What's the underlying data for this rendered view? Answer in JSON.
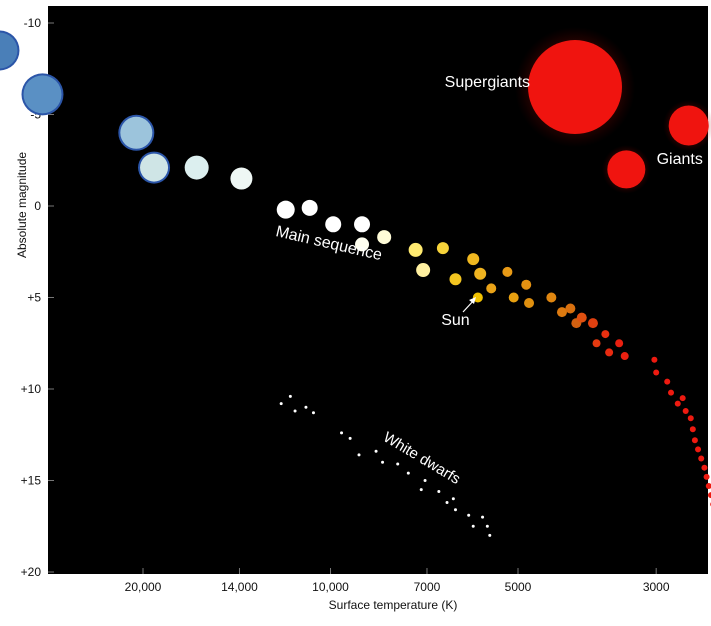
{
  "chart_data": {
    "type": "scatter",
    "title": "",
    "xlabel": "Surface temperature (K)",
    "ylabel": "Absolute magnitude",
    "x_scale": "log",
    "x_reversed": true,
    "xlim": [
      40000,
      2200
    ],
    "ylim": [
      20,
      -10
    ],
    "x_ticks": [
      {
        "value": 20000,
        "label": "20,000"
      },
      {
        "value": 14000,
        "label": "14,000"
      },
      {
        "value": 10000,
        "label": "10,000"
      },
      {
        "value": 7000,
        "label": "7000"
      },
      {
        "value": 5000,
        "label": "5000"
      },
      {
        "value": 3000,
        "label": "3000"
      }
    ],
    "y_ticks": [
      {
        "value": -10,
        "label": "-10"
      },
      {
        "value": -5,
        "label": "-5"
      },
      {
        "value": 0,
        "label": "0"
      },
      {
        "value": 5,
        "label": "+5"
      },
      {
        "value": 10,
        "label": "+10"
      },
      {
        "value": 15,
        "label": "+15"
      },
      {
        "value": 20,
        "label": "+20"
      }
    ],
    "grid": false,
    "background": "#000000",
    "annotations": [
      {
        "text": "Supergiants",
        "x": 5600,
        "y": -6.5,
        "size": 16
      },
      {
        "text": "Giants",
        "x": 2750,
        "y": -2.3,
        "size": 16
      },
      {
        "text": "Main sequence",
        "x": 10100,
        "y": 2.3,
        "size": 16,
        "rotate": 13
      },
      {
        "text": "Sun",
        "x": 6300,
        "y": 6.5,
        "size": 16
      },
      {
        "text": "White dwarfs",
        "x": 7200,
        "y": 14,
        "size": 15,
        "rotate": 31
      }
    ],
    "series": [
      {
        "group": "main_sequence",
        "points": [
          [
            34000,
            -8.5,
            18,
            "#4a7fb8"
          ],
          [
            29000,
            -6.1,
            19,
            "#5a90c4"
          ],
          [
            20500,
            -4.0,
            16,
            "#9cc4dc"
          ],
          [
            19200,
            -2.1,
            14,
            "#cfe5e6"
          ],
          [
            16400,
            -2.1,
            12,
            "#dcefef"
          ],
          [
            13900,
            -1.5,
            11,
            "#eef7f4"
          ],
          [
            11800,
            0.2,
            9,
            "#ffffff"
          ],
          [
            10800,
            0.1,
            8,
            "#ffffff"
          ],
          [
            9900,
            1.0,
            8,
            "#ffffff"
          ],
          [
            8900,
            1.0,
            8,
            "#ffffff"
          ],
          [
            8900,
            2.1,
            7,
            "#fffff0"
          ],
          [
            8200,
            1.7,
            7,
            "#fffcd8"
          ],
          [
            7100,
            3.5,
            7,
            "#fff0a0"
          ],
          [
            7300,
            2.4,
            7,
            "#ffea70"
          ],
          [
            6600,
            2.3,
            6,
            "#f7d33a"
          ],
          [
            6300,
            4.0,
            6,
            "#f3c520"
          ],
          [
            5900,
            2.9,
            6,
            "#f0b820"
          ],
          [
            5750,
            3.7,
            6,
            "#f0b420"
          ],
          [
            5520,
            4.5,
            5,
            "#eaa318"
          ],
          [
            5200,
            3.6,
            5,
            "#e89a16"
          ],
          [
            5080,
            5.0,
            5,
            "#e8a010"
          ],
          [
            4850,
            4.3,
            5,
            "#e59212"
          ],
          [
            4800,
            5.3,
            5,
            "#e0900f"
          ],
          [
            4420,
            5.0,
            5,
            "#df8610"
          ],
          [
            4250,
            5.8,
            5,
            "#dc7a10"
          ],
          [
            4120,
            5.6,
            5,
            "#d8700f"
          ],
          [
            4030,
            6.4,
            5,
            "#d26010"
          ],
          [
            3950,
            6.1,
            5,
            "#e05010"
          ],
          [
            3790,
            6.4,
            5,
            "#e04010"
          ],
          [
            3740,
            7.5,
            4,
            "#e53a10"
          ],
          [
            3620,
            7.0,
            4,
            "#e83010"
          ],
          [
            3570,
            8.0,
            4,
            "#e82a10"
          ],
          [
            3440,
            7.5,
            4,
            "#ea2010"
          ],
          [
            3370,
            8.2,
            4,
            "#ea2010"
          ],
          [
            3020,
            8.4,
            3,
            "#ee1a10"
          ],
          [
            3000,
            9.1,
            3,
            "#ee1a10"
          ],
          [
            2880,
            9.6,
            3,
            "#ee1a10"
          ],
          [
            2840,
            10.2,
            3,
            "#ee1a10"
          ],
          [
            2770,
            10.8,
            3,
            "#ee1a10"
          ],
          [
            2720,
            10.5,
            3,
            "#ee1a10"
          ],
          [
            2690,
            11.2,
            3,
            "#ee1a10"
          ],
          [
            2640,
            11.6,
            3,
            "#ee1a10"
          ],
          [
            2620,
            12.2,
            3,
            "#ee1a10"
          ],
          [
            2600,
            12.8,
            3,
            "#ee1a10"
          ],
          [
            2570,
            13.3,
            3,
            "#ee1a10"
          ],
          [
            2540,
            13.8,
            3,
            "#ee1a10"
          ],
          [
            2510,
            14.3,
            3,
            "#ee1a10"
          ],
          [
            2490,
            14.8,
            3,
            "#ee1a10"
          ],
          [
            2470,
            15.3,
            3,
            "#ee1a10"
          ],
          [
            2450,
            15.8,
            3,
            "#ee1a10"
          ],
          [
            2430,
            16.3,
            3,
            "#ee1a10"
          ],
          [
            2410,
            16.8,
            3,
            "#ee1a10"
          ],
          [
            2390,
            17.3,
            3,
            "#ee1a10"
          ],
          [
            2370,
            17.8,
            3,
            "#ee1a10"
          ],
          [
            2350,
            18.3,
            3,
            "#ee1a10"
          ],
          [
            2330,
            18.8,
            3,
            "#ee1a10"
          ],
          [
            2310,
            19.3,
            3,
            "#ee1a10"
          ],
          [
            2290,
            19.7,
            3,
            "#ee1a10"
          ]
        ]
      },
      {
        "group": "sun",
        "points": [
          [
            5800,
            5.0,
            5,
            "#f2c200"
          ]
        ]
      },
      {
        "group": "giants",
        "points": [
          [
            3350,
            -2.0,
            19,
            "#f0140f"
          ],
          [
            2660,
            -4.4,
            20,
            "#f0140f"
          ]
        ]
      },
      {
        "group": "supergiants",
        "points": [
          [
            4050,
            -6.5,
            47,
            "#f0140f"
          ]
        ]
      },
      {
        "group": "white_dwarfs",
        "points": [
          [
            12000,
            10.8
          ],
          [
            11600,
            10.4
          ],
          [
            11400,
            11.2
          ],
          [
            10950,
            11.0
          ],
          [
            10650,
            11.3
          ],
          [
            9600,
            12.4
          ],
          [
            9300,
            12.7
          ],
          [
            9000,
            13.6
          ],
          [
            8450,
            13.4
          ],
          [
            8250,
            14.0
          ],
          [
            7800,
            14.1
          ],
          [
            7500,
            14.6
          ],
          [
            7050,
            15.0
          ],
          [
            7150,
            15.5
          ],
          [
            6700,
            15.6
          ],
          [
            6500,
            16.2
          ],
          [
            6350,
            16.0
          ],
          [
            6300,
            16.6
          ],
          [
            6000,
            16.9
          ],
          [
            5900,
            17.5
          ],
          [
            5700,
            17.0
          ],
          [
            5600,
            17.5
          ],
          [
            5550,
            18.0
          ]
        ]
      }
    ]
  }
}
